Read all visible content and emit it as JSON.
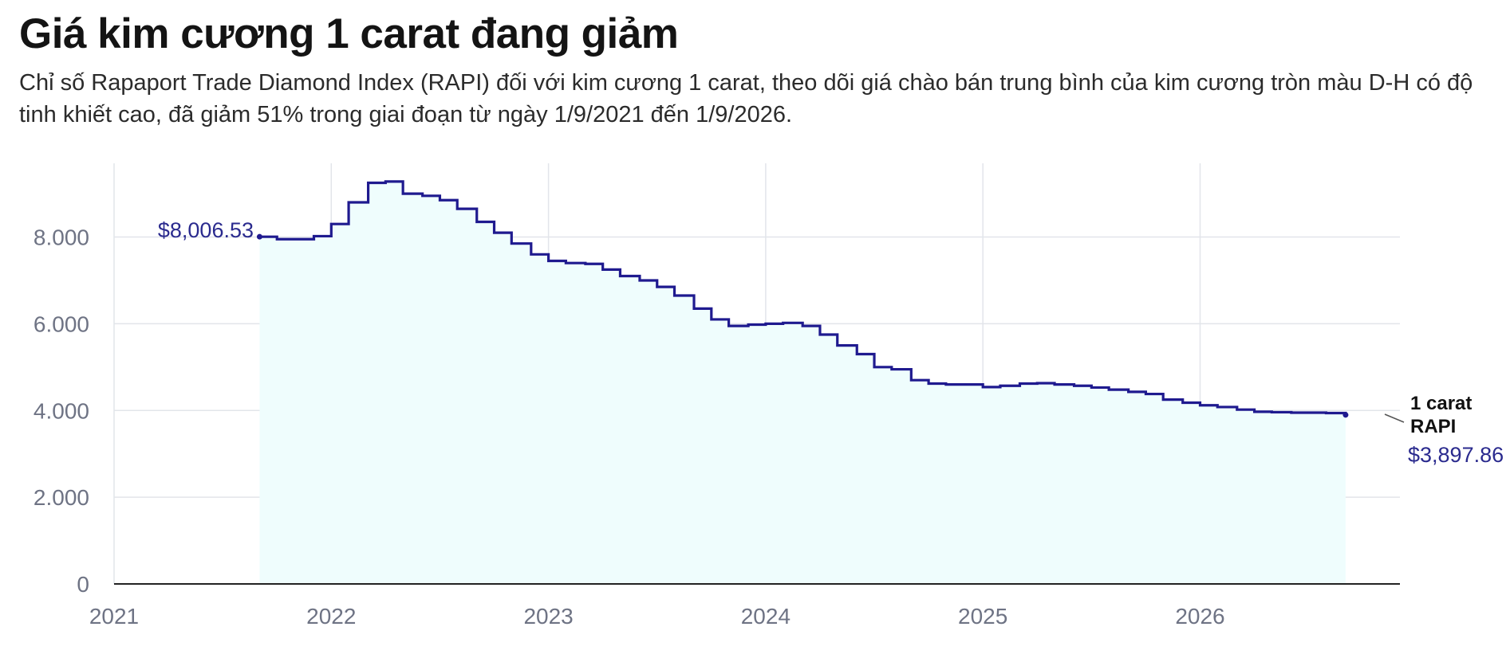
{
  "title": "Giá kim cương 1 carat đang giảm",
  "subtitle": "Chỉ số Rapaport Trade Diamond Index (RAPI) đối với kim cương 1 carat, theo dõi giá chào bán trung bình của kim cương tròn màu D-H có độ tinh khiết cao, đã giảm 51% trong giai đoạn từ ngày 1/9/2021 đến 1/9/2026.",
  "colors": {
    "line": "#1f1a8f",
    "area": "#effdfd",
    "grid": "#e2e5ea",
    "axis": "#222222",
    "label": "#2a2a8e"
  },
  "chart_data": {
    "type": "area",
    "line_shape": "step",
    "title": "Giá kim cương 1 carat đang giảm",
    "xlabel": "",
    "ylabel": "",
    "xlim": [
      2021,
      2026.92
    ],
    "ylim": [
      0,
      9700
    ],
    "x_ticks": [
      "2021",
      "2022",
      "2023",
      "2024",
      "2025",
      "2026"
    ],
    "y_ticks": [
      "0",
      "2.000",
      "4.000",
      "6.000",
      "8.000"
    ],
    "grid": true,
    "annotations": {
      "start_value": "$8,006.53",
      "series_label_line1": "1 carat",
      "series_label_line2": "RAPI",
      "end_value": "$3,897.86"
    },
    "series": [
      {
        "name": "1 carat RAPI",
        "x": [
          2021.67,
          2021.75,
          2021.83,
          2021.92,
          2022.0,
          2022.08,
          2022.17,
          2022.25,
          2022.33,
          2022.42,
          2022.5,
          2022.58,
          2022.67,
          2022.75,
          2022.83,
          2022.92,
          2023.0,
          2023.08,
          2023.17,
          2023.25,
          2023.33,
          2023.42,
          2023.5,
          2023.58,
          2023.67,
          2023.75,
          2023.83,
          2023.92,
          2024.0,
          2024.08,
          2024.17,
          2024.25,
          2024.33,
          2024.42,
          2024.5,
          2024.58,
          2024.67,
          2024.75,
          2024.83,
          2024.92,
          2025.0,
          2025.08,
          2025.17,
          2025.25,
          2025.33,
          2025.42,
          2025.5,
          2025.58,
          2025.67,
          2025.75,
          2025.83,
          2025.92,
          2026.0,
          2026.08,
          2026.17,
          2026.25,
          2026.33,
          2026.42,
          2026.5,
          2026.58,
          2026.67
        ],
        "y": [
          8006.53,
          7950,
          7950,
          8020,
          8300,
          8800,
          9250,
          9280,
          9000,
          8950,
          8850,
          8650,
          8350,
          8100,
          7850,
          7600,
          7450,
          7400,
          7380,
          7250,
          7100,
          7000,
          6850,
          6650,
          6350,
          6100,
          5950,
          5980,
          6000,
          6020,
          5950,
          5750,
          5500,
          5300,
          5000,
          4950,
          4700,
          4620,
          4600,
          4600,
          4540,
          4570,
          4620,
          4630,
          4600,
          4570,
          4530,
          4480,
          4430,
          4380,
          4250,
          4180,
          4120,
          4080,
          4020,
          3970,
          3960,
          3950,
          3950,
          3940,
          3897.86
        ]
      }
    ]
  }
}
